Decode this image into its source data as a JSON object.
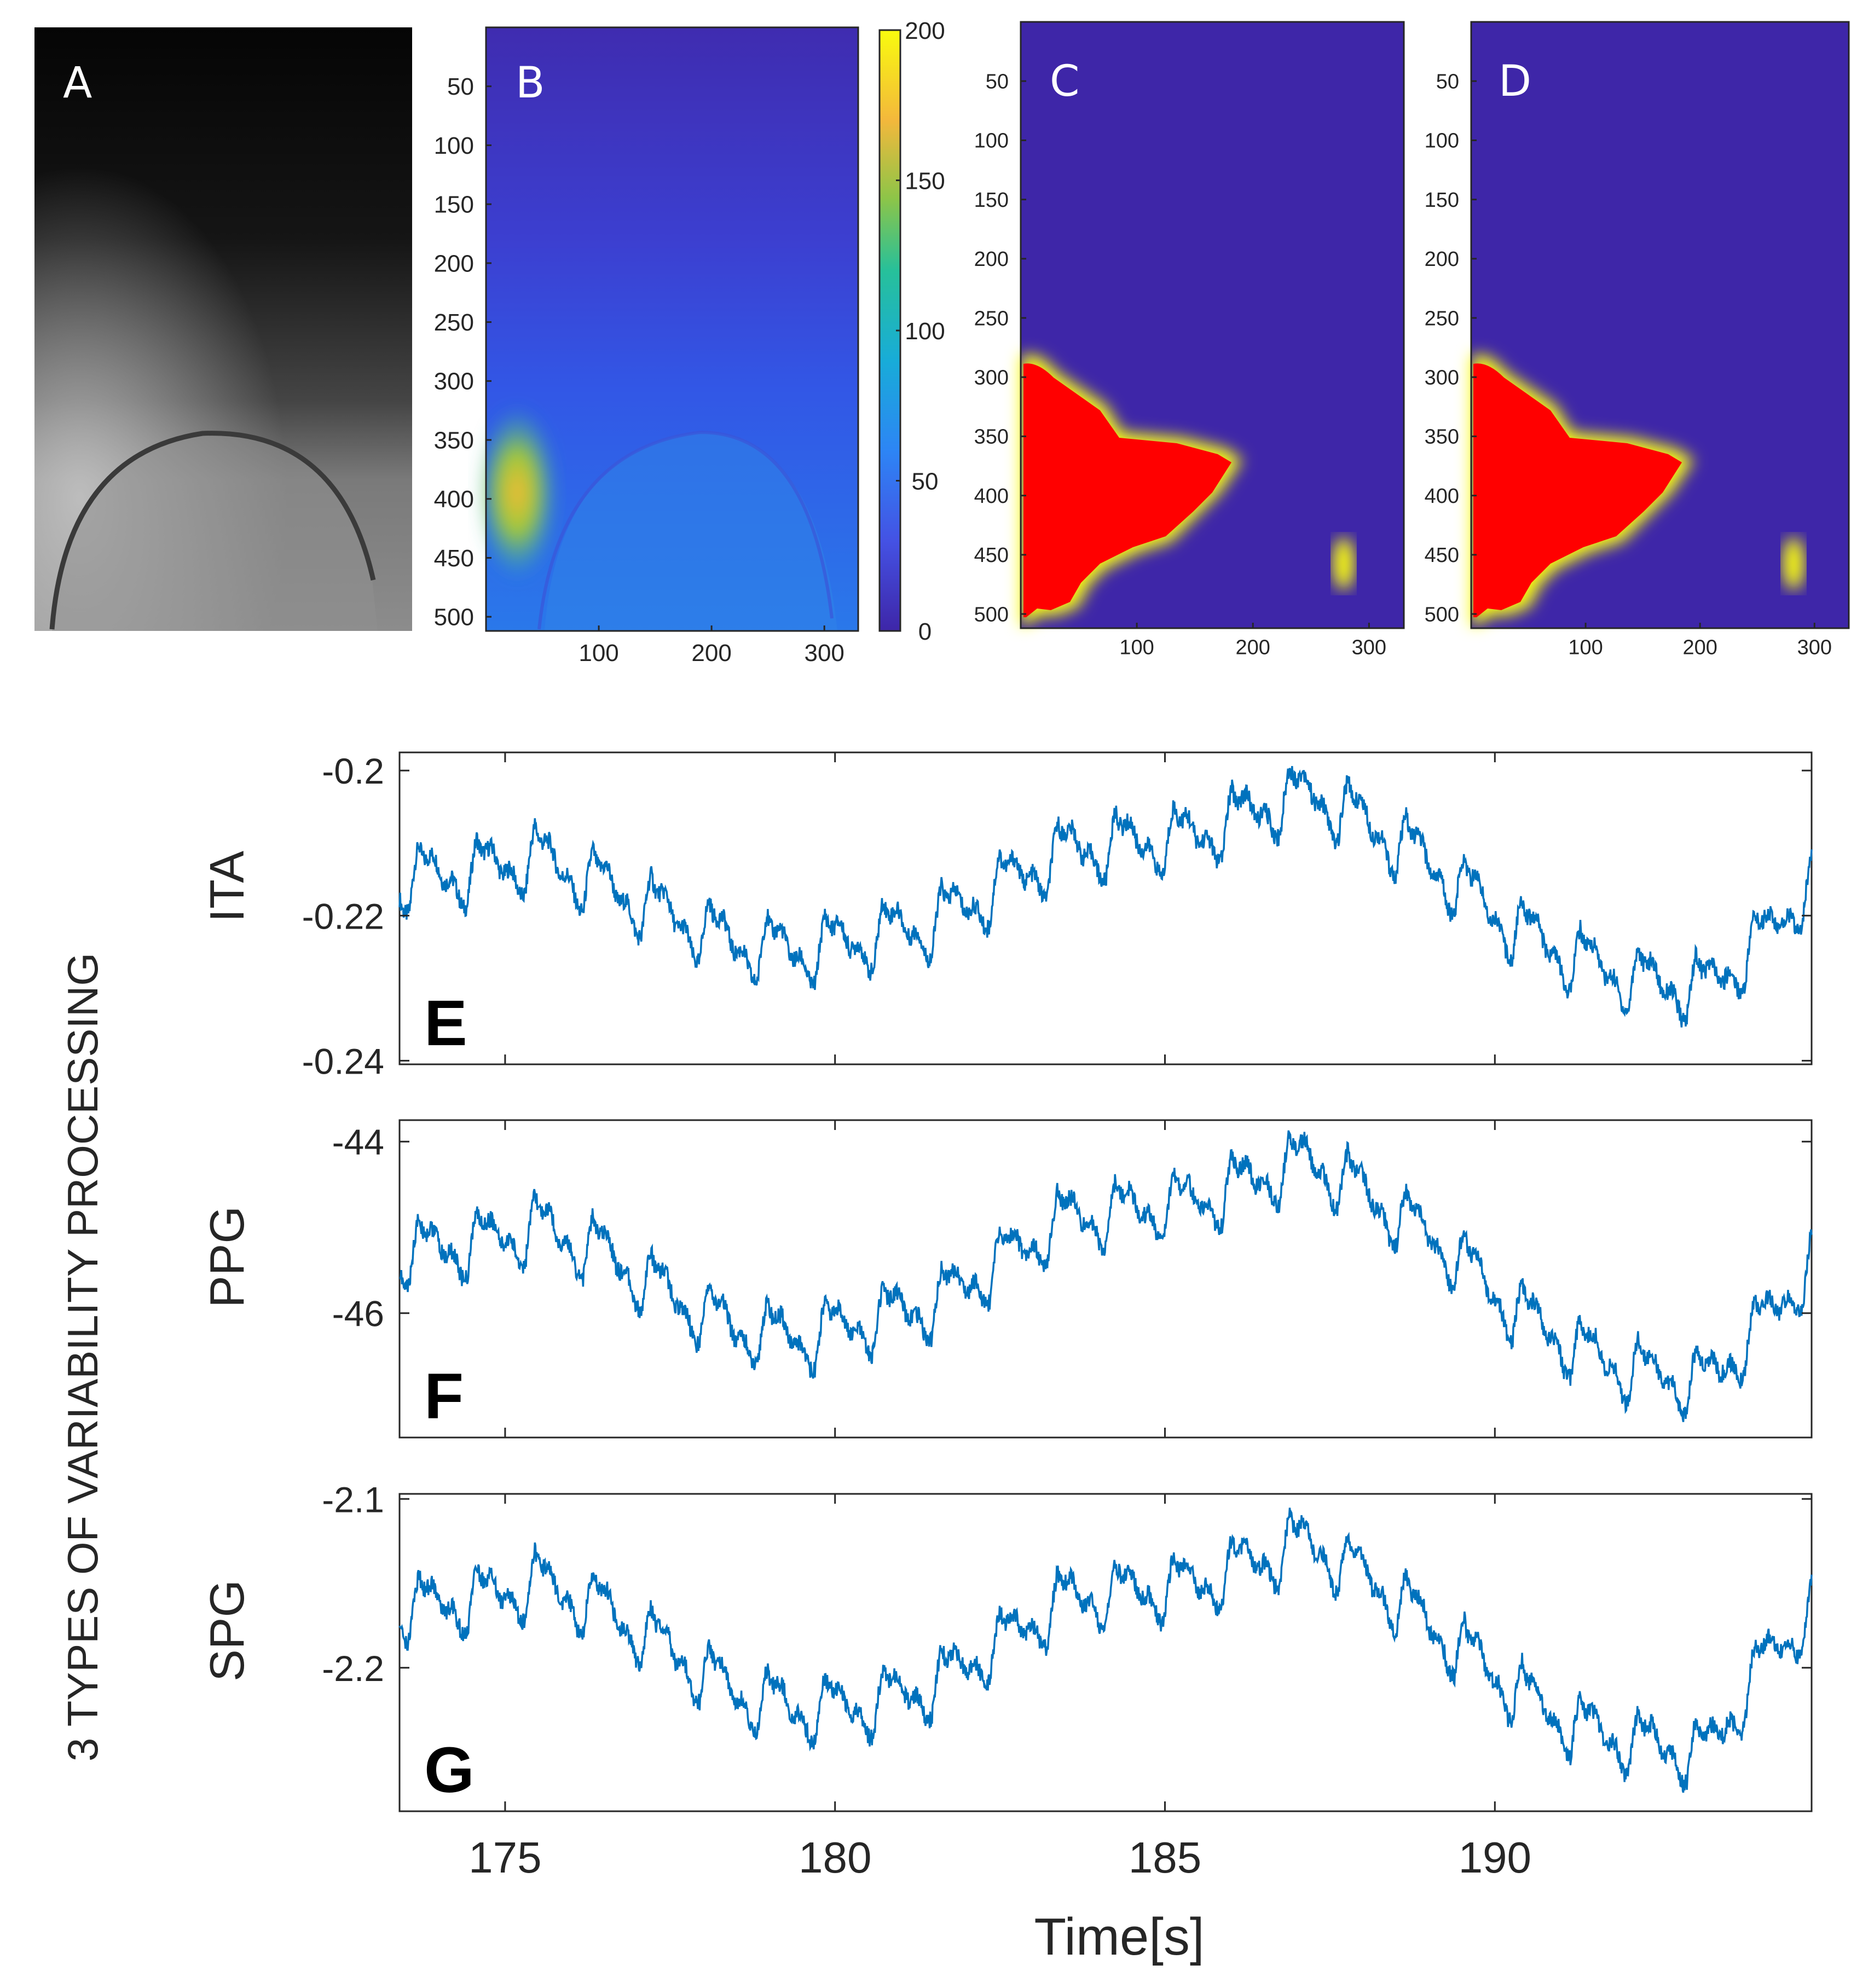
{
  "figure": {
    "side_label": "3 TYPES OF VARIABILITY PROCESSING"
  },
  "panels": {
    "A": {
      "letter": "A",
      "type": "grayscale image"
    },
    "B": {
      "letter": "B",
      "yticks": [
        "50",
        "100",
        "150",
        "200",
        "250",
        "300",
        "350",
        "400",
        "450",
        "500"
      ],
      "xticks": [
        "100",
        "200",
        "300"
      ],
      "colorbar_ticks": [
        "200",
        "150",
        "100",
        "50",
        "0"
      ],
      "colorbar_range": [
        0,
        200
      ]
    },
    "C": {
      "letter": "C",
      "yticks": [
        "50",
        "100",
        "150",
        "200",
        "250",
        "300",
        "350",
        "400",
        "450",
        "500"
      ],
      "xticks": [
        "100",
        "200",
        "300"
      ]
    },
    "D": {
      "letter": "D",
      "yticks": [
        "50",
        "100",
        "150",
        "200",
        "250",
        "300",
        "350",
        "400",
        "450",
        "500"
      ],
      "xticks": [
        "100",
        "200",
        "300"
      ]
    }
  },
  "colors": {
    "line": "#0072BD",
    "map_bg": "#3e26a8",
    "hot": "#ff0000",
    "edge": "#f9fb0e"
  },
  "chart_data": [
    {
      "type": "line",
      "panel": "E",
      "ylabel": "ITA",
      "letter": "E",
      "xlim": [
        173.4,
        194.8
      ],
      "ylim": [
        -0.2405,
        -0.1975
      ],
      "yticks": [
        "-0.2",
        "-0.22",
        "-0.24"
      ],
      "ytick_values": [
        -0.2,
        -0.22,
        -0.24
      ],
      "baseline": [
        [
          173.4,
          -0.215
        ],
        [
          174.5,
          -0.214
        ],
        [
          175.5,
          -0.212
        ],
        [
          176.5,
          -0.216
        ],
        [
          177.5,
          -0.22
        ],
        [
          178.5,
          -0.224
        ],
        [
          179.5,
          -0.225
        ],
        [
          180.5,
          -0.223
        ],
        [
          181.5,
          -0.221
        ],
        [
          182.5,
          -0.216
        ],
        [
          183.5,
          -0.211
        ],
        [
          184.5,
          -0.21
        ],
        [
          185.5,
          -0.209
        ],
        [
          186.5,
          -0.205
        ],
        [
          187.2,
          -0.203
        ],
        [
          188.2,
          -0.208
        ],
        [
          189.2,
          -0.214
        ],
        [
          190.2,
          -0.221
        ],
        [
          191.2,
          -0.226
        ],
        [
          192.2,
          -0.229
        ],
        [
          193.2,
          -0.23
        ],
        [
          194.2,
          -0.222
        ],
        [
          194.8,
          -0.215
        ]
      ],
      "pulse_amplitude": 0.009
    },
    {
      "type": "line",
      "panel": "F",
      "ylabel": "PPG",
      "letter": "F",
      "xlim": [
        173.4,
        194.8
      ],
      "ylim": [
        -47.45,
        -43.75
      ],
      "yticks": [
        "-44",
        "-46"
      ],
      "ytick_values": [
        -44,
        -46
      ],
      "baseline": [
        [
          173.4,
          -45.3
        ],
        [
          174.5,
          -45.2
        ],
        [
          175.5,
          -45.0
        ],
        [
          176.5,
          -45.3
        ],
        [
          177.5,
          -45.8
        ],
        [
          178.5,
          -46.2
        ],
        [
          179.5,
          -46.3
        ],
        [
          180.5,
          -46.1
        ],
        [
          181.5,
          -45.9
        ],
        [
          182.5,
          -45.4
        ],
        [
          183.5,
          -44.9
        ],
        [
          184.5,
          -44.8
        ],
        [
          185.5,
          -44.7
        ],
        [
          186.5,
          -44.4
        ],
        [
          187.2,
          -44.2
        ],
        [
          188.2,
          -44.7
        ],
        [
          189.2,
          -45.2
        ],
        [
          190.2,
          -45.9
        ],
        [
          191.2,
          -46.4
        ],
        [
          192.2,
          -46.7
        ],
        [
          193.2,
          -46.8
        ],
        [
          194.2,
          -46.0
        ],
        [
          194.8,
          -45.4
        ]
      ],
      "pulse_amplitude": 0.75
    },
    {
      "type": "line",
      "panel": "G",
      "ylabel": "SPG",
      "letter": "G",
      "xlim": [
        173.4,
        194.8
      ],
      "ylim": [
        -2.285,
        -2.097
      ],
      "yticks": [
        "-2.1",
        "-2.2"
      ],
      "ytick_values": [
        -2.1,
        -2.2
      ],
      "xlabel": "Time[s]",
      "xticks": [
        "175",
        "180",
        "185",
        "190"
      ],
      "xtick_values": [
        175,
        180,
        185,
        190
      ],
      "baseline": [
        [
          173.4,
          -2.165
        ],
        [
          174.5,
          -2.16
        ],
        [
          175.5,
          -2.15
        ],
        [
          176.5,
          -2.165
        ],
        [
          177.5,
          -2.19
        ],
        [
          178.5,
          -2.215
        ],
        [
          179.5,
          -2.225
        ],
        [
          180.5,
          -2.222
        ],
        [
          181.5,
          -2.21
        ],
        [
          182.5,
          -2.185
        ],
        [
          183.5,
          -2.16
        ],
        [
          184.5,
          -2.155
        ],
        [
          185.5,
          -2.15
        ],
        [
          186.5,
          -2.135
        ],
        [
          187.2,
          -2.125
        ],
        [
          188.2,
          -2.15
        ],
        [
          189.2,
          -2.18
        ],
        [
          190.2,
          -2.21
        ],
        [
          191.2,
          -2.235
        ],
        [
          192.2,
          -2.245
        ],
        [
          193.2,
          -2.25
        ],
        [
          194.2,
          -2.19
        ],
        [
          194.8,
          -2.165
        ]
      ],
      "pulse_amplitude": 0.038
    }
  ]
}
